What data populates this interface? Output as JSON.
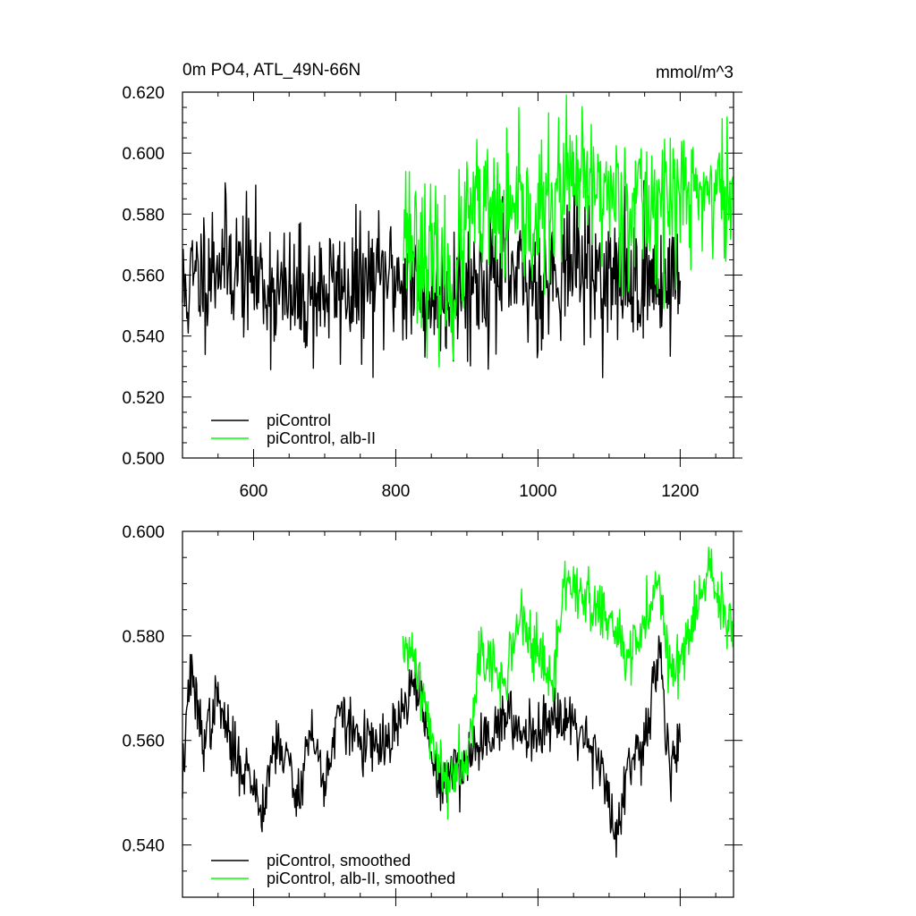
{
  "chart_data": [
    {
      "type": "line",
      "title": "0m PO4, ATL_49N-66N",
      "units": "mmol/m^3",
      "xlim": [
        500,
        1275
      ],
      "ylim": [
        0.5,
        0.62
      ],
      "x_ticks": [
        600,
        800,
        1000,
        1200
      ],
      "x_tick_labels": [
        "600",
        "800",
        "1000",
        "1200"
      ],
      "y_ticks": [
        0.5,
        0.52,
        0.54,
        0.56,
        0.58,
        0.6,
        0.62
      ],
      "y_tick_labels": [
        "0.500",
        "0.520",
        "0.540",
        "0.560",
        "0.580",
        "0.600",
        "0.620"
      ],
      "legend_position": "bottom-left",
      "series": [
        {
          "name": "piControl",
          "color": "#000000",
          "x_start": 500,
          "x_end": 1200,
          "mean": 0.56,
          "noise": 0.011,
          "seed": 11,
          "anchors": [
            [
              500,
              0.554
            ],
            [
              550,
              0.566
            ],
            [
              600,
              0.56
            ],
            [
              650,
              0.552
            ],
            [
              700,
              0.555
            ],
            [
              750,
              0.556
            ],
            [
              800,
              0.56
            ],
            [
              850,
              0.552
            ],
            [
              900,
              0.557
            ],
            [
              950,
              0.56
            ],
            [
              1000,
              0.557
            ],
            [
              1050,
              0.566
            ],
            [
              1100,
              0.558
            ],
            [
              1150,
              0.559
            ],
            [
              1200,
              0.558
            ]
          ],
          "values": null
        },
        {
          "name": "piControl, alb-II",
          "color": "#00ff00",
          "x_start": 810,
          "x_end": 1275,
          "mean": 0.575,
          "noise": 0.012,
          "seed": 23,
          "anchors": [
            [
              810,
              0.578
            ],
            [
              850,
              0.563
            ],
            [
              880,
              0.556
            ],
            [
              905,
              0.58
            ],
            [
              950,
              0.578
            ],
            [
              1000,
              0.578
            ],
            [
              1040,
              0.59
            ],
            [
              1080,
              0.588
            ],
            [
              1100,
              0.587
            ],
            [
              1150,
              0.583
            ],
            [
              1200,
              0.586
            ],
            [
              1250,
              0.588
            ],
            [
              1275,
              0.583
            ]
          ],
          "values": null
        }
      ]
    },
    {
      "type": "line",
      "title": "",
      "xlim": [
        500,
        1275
      ],
      "ylim": [
        0.53,
        0.6
      ],
      "x_ticks": [
        600,
        800,
        1000,
        1200
      ],
      "x_tick_labels": [],
      "y_ticks": [
        0.54,
        0.56,
        0.58,
        0.6
      ],
      "y_tick_labels": [
        "0.540",
        "0.560",
        "0.580",
        "0.600"
      ],
      "legend_position": "bottom-left",
      "series": [
        {
          "name": "piControl, smoothed",
          "color": "#000000",
          "x_start": 500,
          "x_end": 1200,
          "mean": 0.56,
          "noise": 0.0028,
          "seed": 37,
          "anchors": [
            [
              500,
              0.552
            ],
            [
              510,
              0.573
            ],
            [
              530,
              0.56
            ],
            [
              550,
              0.568
            ],
            [
              570,
              0.558
            ],
            [
              600,
              0.552
            ],
            [
              610,
              0.546
            ],
            [
              630,
              0.56
            ],
            [
              650,
              0.556
            ],
            [
              660,
              0.548
            ],
            [
              680,
              0.562
            ],
            [
              700,
              0.552
            ],
            [
              720,
              0.565
            ],
            [
              750,
              0.56
            ],
            [
              780,
              0.558
            ],
            [
              800,
              0.562
            ],
            [
              830,
              0.572
            ],
            [
              850,
              0.556
            ],
            [
              860,
              0.552
            ],
            [
              880,
              0.554
            ],
            [
              900,
              0.556
            ],
            [
              920,
              0.56
            ],
            [
              950,
              0.564
            ],
            [
              975,
              0.562
            ],
            [
              1000,
              0.562
            ],
            [
              1030,
              0.566
            ],
            [
              1060,
              0.562
            ],
            [
              1090,
              0.556
            ],
            [
              1110,
              0.54
            ],
            [
              1125,
              0.554
            ],
            [
              1150,
              0.558
            ],
            [
              1170,
              0.578
            ],
            [
              1185,
              0.556
            ],
            [
              1200,
              0.56
            ]
          ],
          "values": null
        },
        {
          "name": "piControl, alb-II, smoothed",
          "color": "#00ff00",
          "x_start": 810,
          "x_end": 1275,
          "mean": 0.578,
          "noise": 0.003,
          "seed": 41,
          "anchors": [
            [
              810,
              0.575
            ],
            [
              825,
              0.578
            ],
            [
              850,
              0.56
            ],
            [
              870,
              0.552
            ],
            [
              900,
              0.558
            ],
            [
              920,
              0.578
            ],
            [
              950,
              0.57
            ],
            [
              975,
              0.584
            ],
            [
              1000,
              0.576
            ],
            [
              1020,
              0.57
            ],
            [
              1040,
              0.592
            ],
            [
              1060,
              0.588
            ],
            [
              1080,
              0.585
            ],
            [
              1100,
              0.583
            ],
            [
              1130,
              0.575
            ],
            [
              1150,
              0.582
            ],
            [
              1170,
              0.592
            ],
            [
              1190,
              0.57
            ],
            [
              1200,
              0.577
            ],
            [
              1220,
              0.583
            ],
            [
              1240,
              0.592
            ],
            [
              1255,
              0.587
            ],
            [
              1275,
              0.579
            ]
          ],
          "values": null
        }
      ]
    }
  ]
}
